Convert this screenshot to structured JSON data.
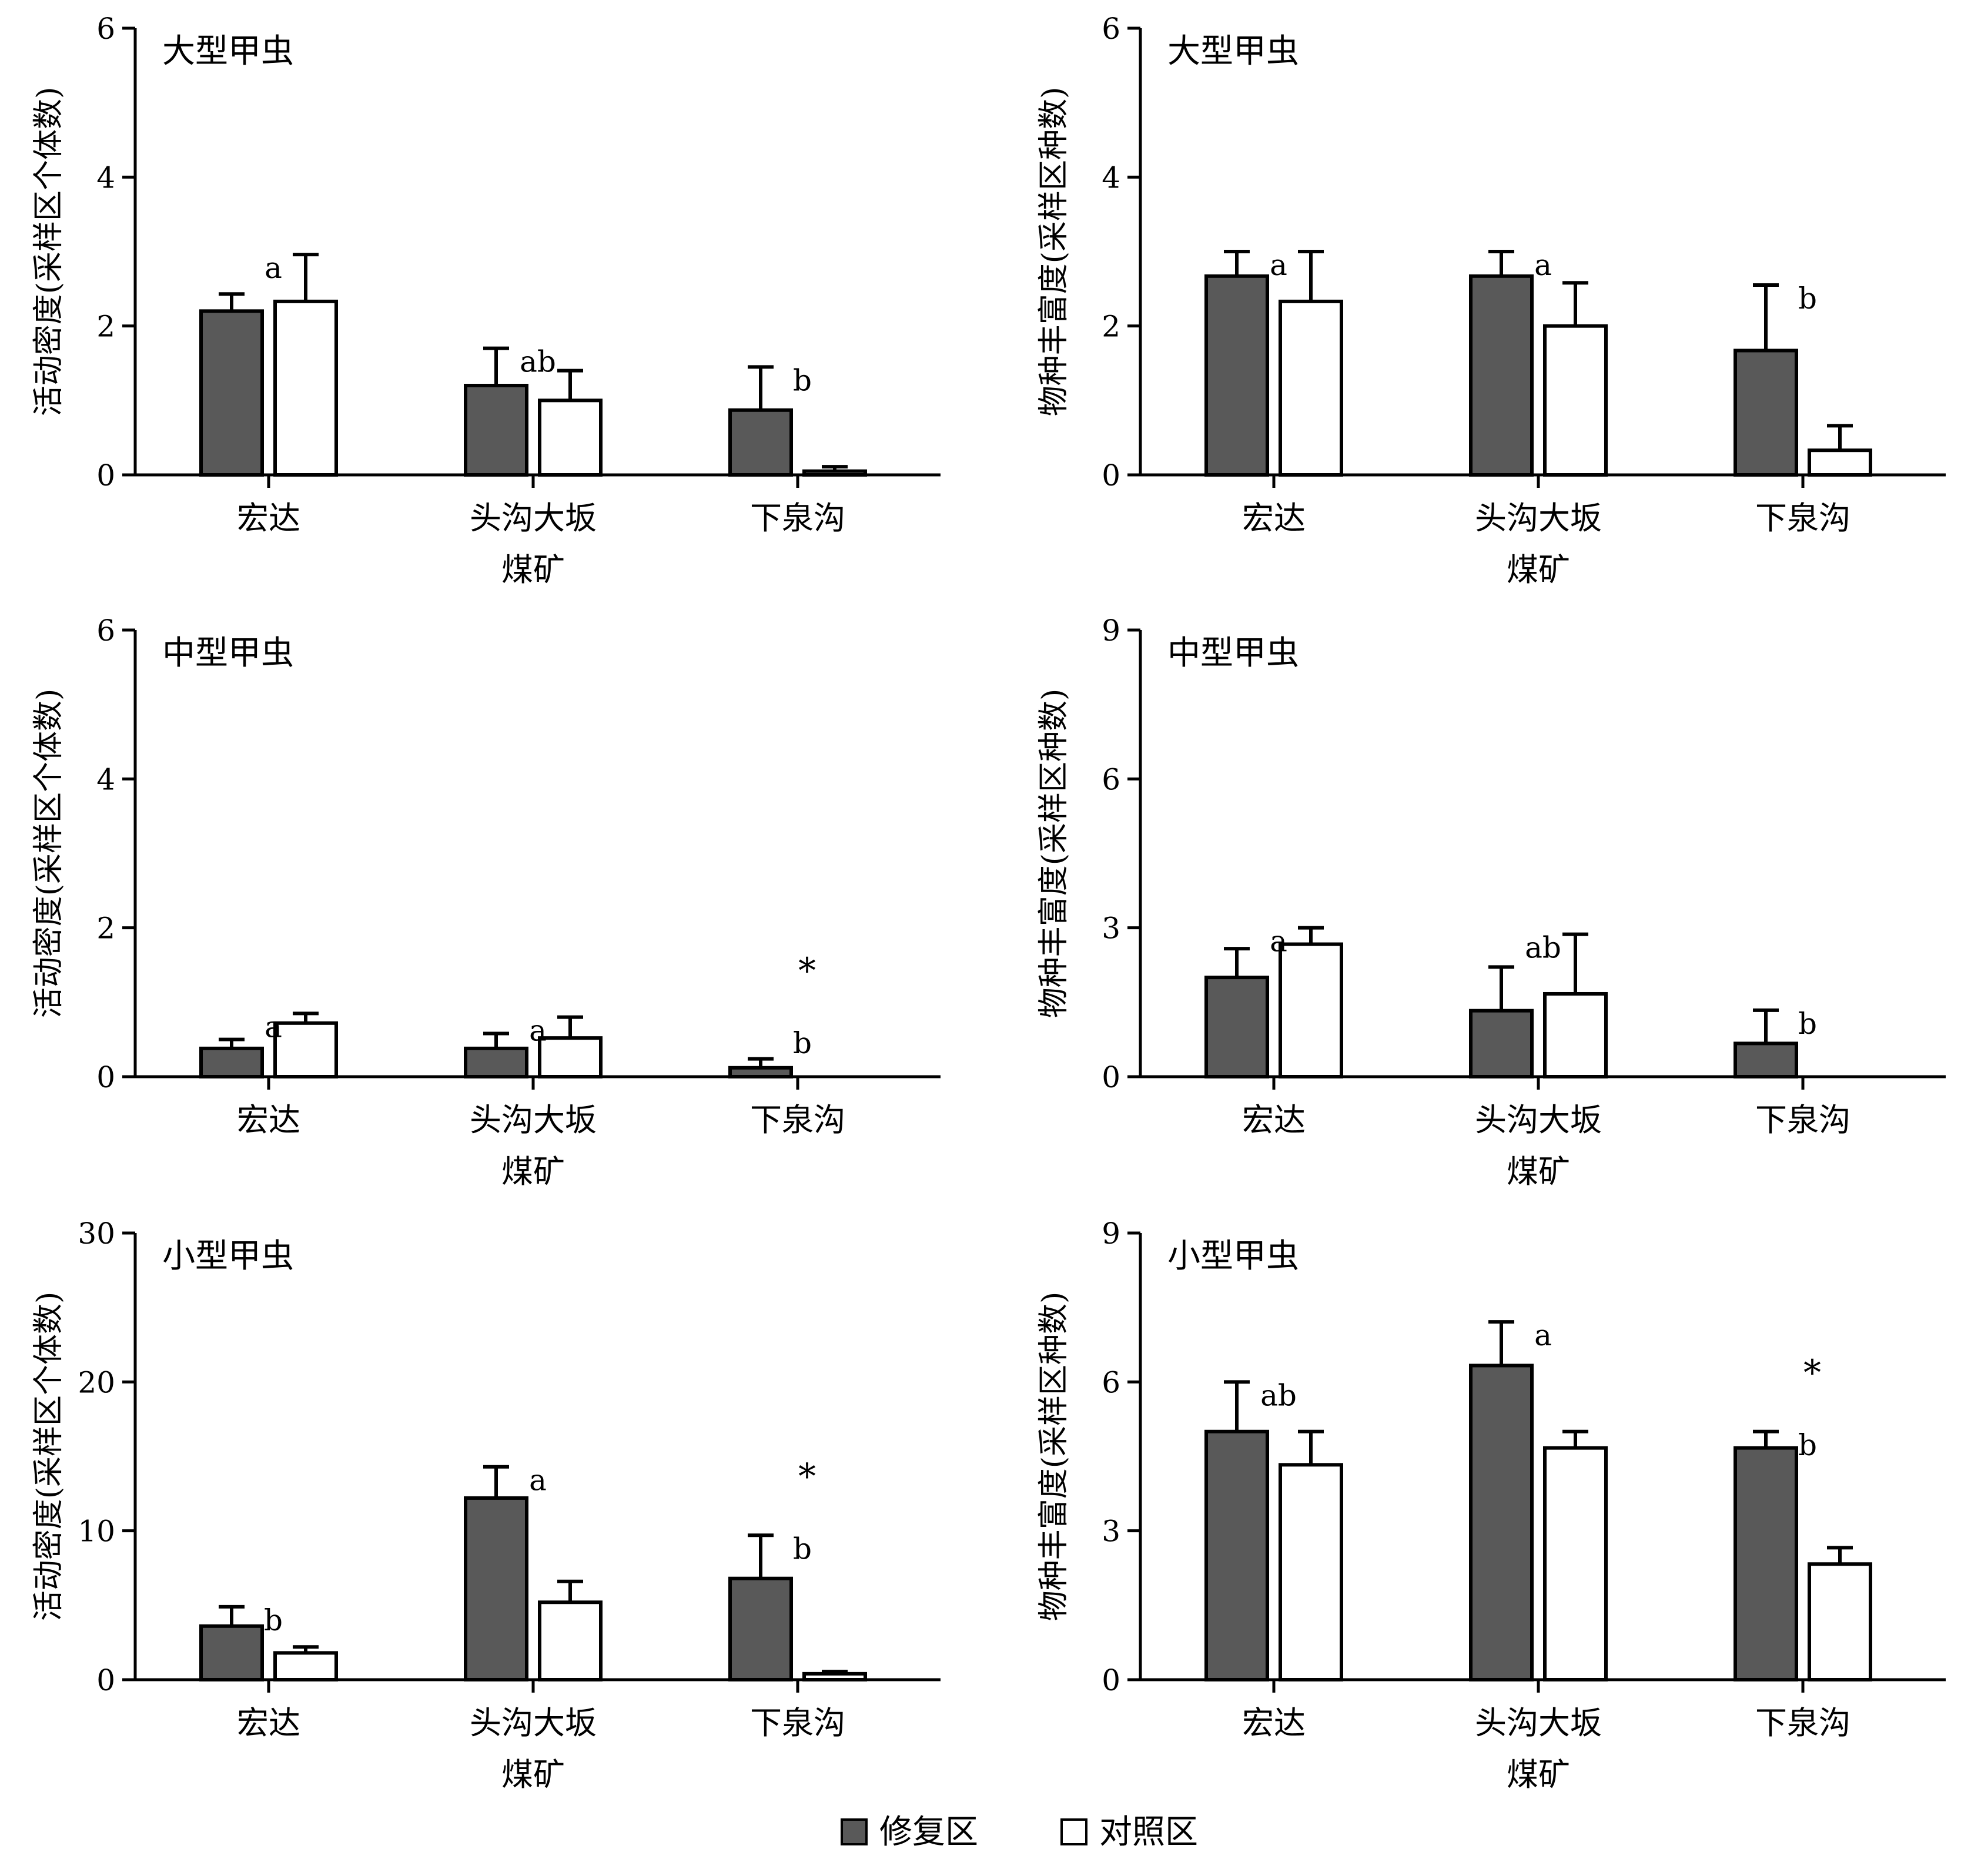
{
  "colors": {
    "restored": "#595959",
    "control": "#ffffff",
    "axis": "#000000"
  },
  "legend": {
    "restored": "修复区",
    "control": "对照区"
  },
  "chart_data": [
    {
      "type": "bar",
      "title": "大型甲虫",
      "ylabel": "活动密度(采样区个体数)",
      "xlabel": "煤矿",
      "categories": [
        "宏达",
        "头沟大坂",
        "下泉沟"
      ],
      "ylim": [
        0,
        6
      ],
      "yticks": [
        "0",
        "2",
        "4",
        "6"
      ],
      "series": [
        {
          "name": "修复区",
          "values": [
            2.2,
            1.2,
            0.87
          ],
          "errors": [
            0.23,
            0.5,
            0.58
          ]
        },
        {
          "name": "对照区",
          "values": [
            2.33,
            1.0,
            0.05
          ],
          "errors": [
            0.63,
            0.4,
            0.06
          ]
        }
      ],
      "letters": [
        "a",
        "ab",
        "b"
      ],
      "stars": [
        "",
        "",
        ""
      ]
    },
    {
      "type": "bar",
      "title": "大型甲虫",
      "ylabel": "物种丰富度(采样区种数)",
      "xlabel": "煤矿",
      "categories": [
        "宏达",
        "头沟大坂",
        "下泉沟"
      ],
      "ylim": [
        0,
        6
      ],
      "yticks": [
        "0",
        "2",
        "4",
        "6"
      ],
      "series": [
        {
          "name": "修复区",
          "values": [
            2.67,
            2.67,
            1.67
          ],
          "errors": [
            0.33,
            0.33,
            0.88
          ]
        },
        {
          "name": "对照区",
          "values": [
            2.33,
            2.0,
            0.33
          ],
          "errors": [
            0.67,
            0.58,
            0.33
          ]
        }
      ],
      "letters": [
        "a",
        "a",
        "b"
      ],
      "stars": [
        "",
        "",
        ""
      ]
    },
    {
      "type": "bar",
      "title": "中型甲虫",
      "ylabel": "活动密度(采样区个体数)",
      "xlabel": "煤矿",
      "categories": [
        "宏达",
        "头沟大坂",
        "下泉沟"
      ],
      "ylim": [
        0,
        6
      ],
      "yticks": [
        "0",
        "2",
        "4",
        "6"
      ],
      "series": [
        {
          "name": "修复区",
          "values": [
            0.38,
            0.38,
            0.12
          ],
          "errors": [
            0.12,
            0.2,
            0.12
          ]
        },
        {
          "name": "对照区",
          "values": [
            0.72,
            0.52,
            0.0
          ],
          "errors": [
            0.13,
            0.28,
            0.0
          ]
        }
      ],
      "letters": [
        "a",
        "a",
        "b"
      ],
      "stars": [
        "",
        "",
        "*"
      ]
    },
    {
      "type": "bar",
      "title": "中型甲虫",
      "ylabel": "物种丰富度(采样区种数)",
      "xlabel": "煤矿",
      "categories": [
        "宏达",
        "头沟大坂",
        "下泉沟"
      ],
      "ylim": [
        0,
        9
      ],
      "yticks": [
        "0",
        "3",
        "6",
        "9"
      ],
      "series": [
        {
          "name": "修复区",
          "values": [
            2.0,
            1.33,
            0.67
          ],
          "errors": [
            0.58,
            0.88,
            0.67
          ]
        },
        {
          "name": "对照区",
          "values": [
            2.67,
            1.67,
            0.0
          ],
          "errors": [
            0.33,
            1.2,
            0.0
          ]
        }
      ],
      "letters": [
        "a",
        "ab",
        "b"
      ],
      "stars": [
        "",
        "",
        ""
      ]
    },
    {
      "type": "bar",
      "title": "小型甲虫",
      "ylabel": "活动密度(采样区个体数)",
      "xlabel": "煤矿",
      "categories": [
        "宏达",
        "头沟大坂",
        "下泉沟"
      ],
      "ylim": [
        0,
        30
      ],
      "yticks": [
        "0",
        "10",
        "20",
        "30"
      ],
      "series": [
        {
          "name": "修复区",
          "values": [
            3.6,
            12.2,
            6.8
          ],
          "errors": [
            1.3,
            2.1,
            2.9
          ]
        },
        {
          "name": "对照区",
          "values": [
            1.8,
            5.2,
            0.4
          ],
          "errors": [
            0.4,
            1.4,
            0.15
          ]
        }
      ],
      "letters": [
        "b",
        "a",
        "b"
      ],
      "stars": [
        "",
        "",
        "*"
      ]
    },
    {
      "type": "bar",
      "title": "小型甲虫",
      "ylabel": "物种丰富度(采样区种数)",
      "xlabel": "煤矿",
      "categories": [
        "宏达",
        "头沟大坂",
        "下泉沟"
      ],
      "ylim": [
        0,
        9
      ],
      "yticks": [
        "0",
        "3",
        "6",
        "9"
      ],
      "series": [
        {
          "name": "修复区",
          "values": [
            5.0,
            6.33,
            4.67
          ],
          "errors": [
            1.0,
            0.88,
            0.33
          ]
        },
        {
          "name": "对照区",
          "values": [
            4.33,
            4.67,
            2.33
          ],
          "errors": [
            0.67,
            0.33,
            0.33
          ]
        }
      ],
      "letters": [
        "ab",
        "a",
        "b"
      ],
      "stars": [
        "",
        "",
        "*"
      ]
    }
  ]
}
